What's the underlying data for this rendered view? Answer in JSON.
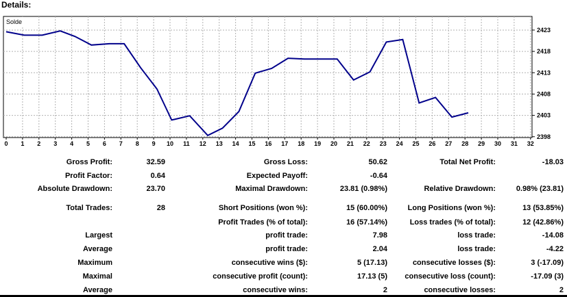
{
  "header": {
    "title": "Details:"
  },
  "chart_data": {
    "type": "line",
    "legend_label": "Solde",
    "x_ticks": [
      "0",
      "1",
      "2",
      "3",
      "4",
      "5",
      "6",
      "7",
      "8",
      "9",
      "10",
      "11",
      "12",
      "13",
      "14",
      "15",
      "16",
      "17",
      "18",
      "19",
      "20",
      "21",
      "22",
      "23",
      "24",
      "25",
      "26",
      "27",
      "28",
      "29",
      "30",
      "31",
      "32"
    ],
    "y_ticks": [
      "2423",
      "2418",
      "2413",
      "2408",
      "2403",
      "2398"
    ],
    "ylim": [
      2397.8,
      2426.2
    ],
    "xlim": [
      0,
      32
    ],
    "grid": true,
    "series": [
      {
        "color": "#00008b",
        "x": [
          0,
          1.1,
          2.2,
          3.3,
          4.2,
          5.2,
          6.3,
          7.2,
          8.2,
          9.2,
          10.1,
          11.2,
          12.3,
          13.2,
          14.2,
          15.2,
          16.2,
          17.2,
          18.2,
          19.2,
          20.2,
          21.2,
          22.2,
          23.2,
          24.2,
          25.2,
          26.2,
          27.2,
          28.2
        ],
        "y": [
          2422.6,
          2421.8,
          2421.8,
          2422.8,
          2421.5,
          2419.5,
          2419.8,
          2419.8,
          2414.2,
          2409.2,
          2401.9,
          2402.9,
          2398.3,
          2400.0,
          2403.9,
          2412.9,
          2414.0,
          2416.4,
          2416.2,
          2416.2,
          2416.2,
          2411.3,
          2413.2,
          2420.2,
          2420.8,
          2405.9,
          2407.2,
          2402.6,
          2403.6
        ]
      }
    ]
  },
  "stats": {
    "rows": [
      [
        "Gross Profit:",
        "32.59",
        "Gross Loss:",
        "50.62",
        "Total Net Profit:",
        "-18.03"
      ],
      [
        "Profit Factor:",
        "0.64",
        "Expected Payoff:",
        "-0.64",
        "",
        ""
      ],
      [
        "Absolute Drawdown:",
        "23.70",
        "Maximal Drawdown:",
        "23.81 (0.98%)",
        "Relative Drawdown:",
        "0.98% (23.81)"
      ],
      [
        "Total Trades:",
        "28",
        "Short Positions (won %):",
        "15 (60.00%)",
        "Long Positions (won %):",
        "13 (53.85%)"
      ],
      [
        "",
        "",
        "Profit Trades (% of total):",
        "16 (57.14%)",
        "Loss trades (% of total):",
        "12 (42.86%)"
      ],
      [
        "Largest",
        "",
        "profit trade:",
        "7.98",
        "loss trade:",
        "-14.08"
      ],
      [
        "Average",
        "",
        "profit trade:",
        "2.04",
        "loss trade:",
        "-4.22"
      ],
      [
        "Maximum",
        "",
        "consecutive wins ($):",
        "5 (17.13)",
        "consecutive losses ($):",
        "3 (-17.09)"
      ],
      [
        "Maximal",
        "",
        "consecutive profit (count):",
        "17.13 (5)",
        "consecutive loss (count):",
        "-17.09 (3)"
      ],
      [
        "Average",
        "",
        "consecutive wins:",
        "2",
        "consecutive losses:",
        "2"
      ]
    ]
  }
}
